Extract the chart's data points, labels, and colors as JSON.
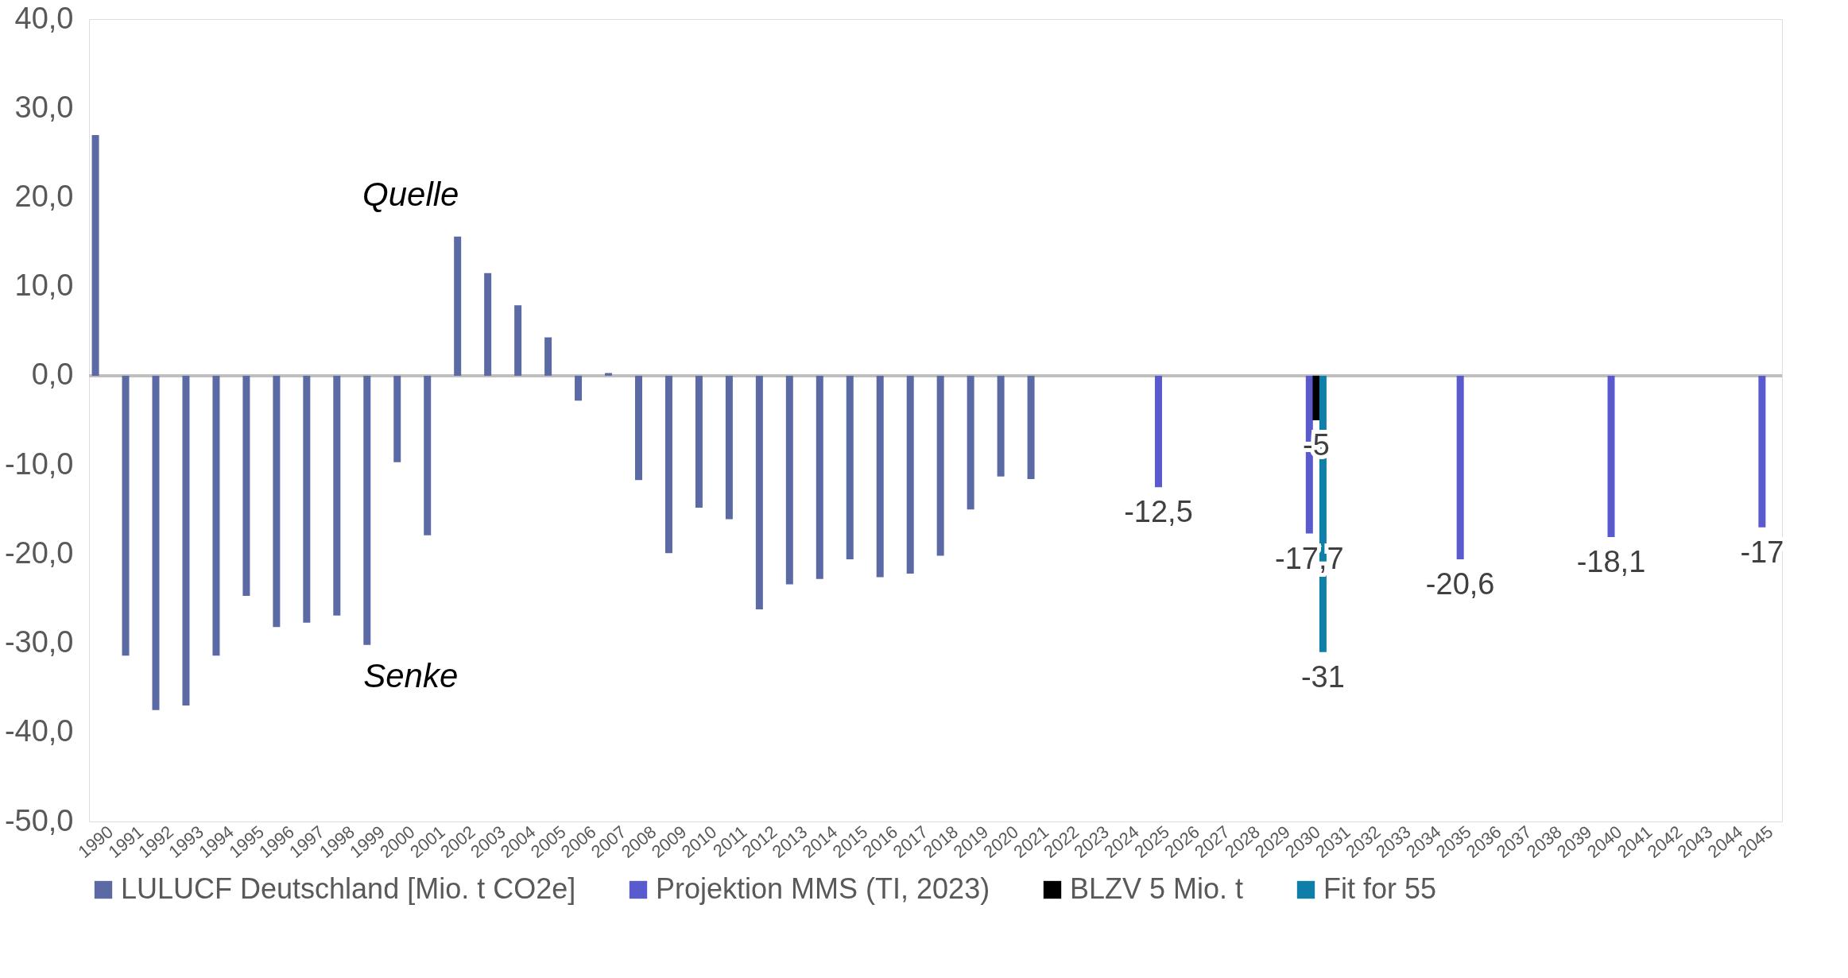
{
  "chart_data": {
    "type": "bar",
    "categories": [
      "1990",
      "1991",
      "1992",
      "1993",
      "1994",
      "1995",
      "1996",
      "1997",
      "1998",
      "1999",
      "2000",
      "2001",
      "2002",
      "2003",
      "2004",
      "2005",
      "2006",
      "2007",
      "2008",
      "2009",
      "2010",
      "2011",
      "2012",
      "2013",
      "2014",
      "2015",
      "2016",
      "2017",
      "2018",
      "2019",
      "2020",
      "2021",
      "2022",
      "2023",
      "2024",
      "2025",
      "2026",
      "2027",
      "2028",
      "2029",
      "2030",
      "2031",
      "2032",
      "2033",
      "2034",
      "2035",
      "2036",
      "2037",
      "2038",
      "2039",
      "2040",
      "2041",
      "2042",
      "2043",
      "2044",
      "2045"
    ],
    "series": [
      {
        "name": "LULUCF Deutschland [Mio. t CO2e]",
        "color": "#5b6aa5",
        "values": [
          27.0,
          -31.4,
          -37.5,
          -37.0,
          -31.4,
          -24.7,
          -28.2,
          -27.7,
          -26.9,
          -30.2,
          -9.7,
          -17.9,
          15.6,
          11.5,
          7.9,
          4.3,
          -2.8,
          0.3,
          -11.7,
          -19.9,
          -14.8,
          -16.1,
          -26.2,
          -23.4,
          -22.8,
          -20.6,
          -22.6,
          -22.2,
          -20.2,
          -15.0,
          -11.3,
          -11.6,
          null,
          null,
          null,
          null,
          null,
          null,
          null,
          null,
          null,
          null,
          null,
          null,
          null,
          null,
          null,
          null,
          null,
          null,
          null,
          null,
          null,
          null,
          null,
          null
        ]
      },
      {
        "name": "Projektion MMS (TI, 2023)",
        "color": "#5a5acf",
        "values": [
          null,
          null,
          null,
          null,
          null,
          null,
          null,
          null,
          null,
          null,
          null,
          null,
          null,
          null,
          null,
          null,
          null,
          null,
          null,
          null,
          null,
          null,
          null,
          null,
          null,
          null,
          null,
          null,
          null,
          null,
          null,
          null,
          null,
          null,
          null,
          -12.5,
          null,
          null,
          null,
          null,
          -17.7,
          null,
          null,
          null,
          null,
          -20.6,
          null,
          null,
          null,
          null,
          -18.1,
          null,
          null,
          null,
          null,
          -17
        ],
        "value_labels": [
          null,
          null,
          null,
          null,
          null,
          null,
          null,
          null,
          null,
          null,
          null,
          null,
          null,
          null,
          null,
          null,
          null,
          null,
          null,
          null,
          null,
          null,
          null,
          null,
          null,
          null,
          null,
          null,
          null,
          null,
          null,
          null,
          null,
          null,
          null,
          "-12,5",
          null,
          null,
          null,
          null,
          "-17,7",
          null,
          null,
          null,
          null,
          "-20,6",
          null,
          null,
          null,
          null,
          "-18,1",
          null,
          null,
          null,
          null,
          "-17"
        ]
      },
      {
        "name": "BLZV 5 Mio. t",
        "color": "#000000",
        "values": [
          null,
          null,
          null,
          null,
          null,
          null,
          null,
          null,
          null,
          null,
          null,
          null,
          null,
          null,
          null,
          null,
          null,
          null,
          null,
          null,
          null,
          null,
          null,
          null,
          null,
          null,
          null,
          null,
          null,
          null,
          null,
          null,
          null,
          null,
          null,
          null,
          null,
          null,
          null,
          null,
          -5,
          null,
          null,
          null,
          null,
          null,
          null,
          null,
          null,
          null,
          null,
          null,
          null,
          null,
          null,
          null
        ],
        "value_labels": [
          null,
          null,
          null,
          null,
          null,
          null,
          null,
          null,
          null,
          null,
          null,
          null,
          null,
          null,
          null,
          null,
          null,
          null,
          null,
          null,
          null,
          null,
          null,
          null,
          null,
          null,
          null,
          null,
          null,
          null,
          null,
          null,
          null,
          null,
          null,
          null,
          null,
          null,
          null,
          null,
          "-5",
          null,
          null,
          null,
          null,
          null,
          null,
          null,
          null,
          null,
          null,
          null,
          null,
          null,
          null,
          null
        ]
      },
      {
        "name": "Fit for 55",
        "color": "#0e7fa8",
        "values": [
          null,
          null,
          null,
          null,
          null,
          null,
          null,
          null,
          null,
          null,
          null,
          null,
          null,
          null,
          null,
          null,
          null,
          null,
          null,
          null,
          null,
          null,
          null,
          null,
          null,
          null,
          null,
          null,
          null,
          null,
          null,
          null,
          null,
          null,
          null,
          null,
          null,
          null,
          null,
          null,
          -31,
          null,
          null,
          null,
          null,
          null,
          null,
          null,
          null,
          null,
          null,
          null,
          null,
          null,
          null,
          null
        ],
        "value_labels": [
          null,
          null,
          null,
          null,
          null,
          null,
          null,
          null,
          null,
          null,
          null,
          null,
          null,
          null,
          null,
          null,
          null,
          null,
          null,
          null,
          null,
          null,
          null,
          null,
          null,
          null,
          null,
          null,
          null,
          null,
          null,
          null,
          null,
          null,
          null,
          null,
          null,
          null,
          null,
          null,
          "-31",
          null,
          null,
          null,
          null,
          null,
          null,
          null,
          null,
          null,
          null,
          null,
          null,
          null,
          null,
          null
        ]
      }
    ],
    "ylim": [
      -50,
      40
    ],
    "yticks": [
      {
        "value": 40,
        "label": "40,0"
      },
      {
        "value": 30,
        "label": "30,0"
      },
      {
        "value": 20,
        "label": "20,0"
      },
      {
        "value": 10,
        "label": "10,0"
      },
      {
        "value": 0,
        "label": "0,0"
      },
      {
        "value": -10,
        "label": "-10,0"
      },
      {
        "value": -20,
        "label": "-20,0"
      },
      {
        "value": -30,
        "label": "-30,0"
      },
      {
        "value": -40,
        "label": "-40,0"
      },
      {
        "value": -50,
        "label": "-50,0"
      }
    ],
    "ref_lines": [
      {
        "axis": "y",
        "value": 0,
        "color": "#bfbfbf"
      }
    ],
    "annotations": [
      "Quelle",
      "Senke"
    ],
    "grid": false,
    "legend": "bottom"
  }
}
